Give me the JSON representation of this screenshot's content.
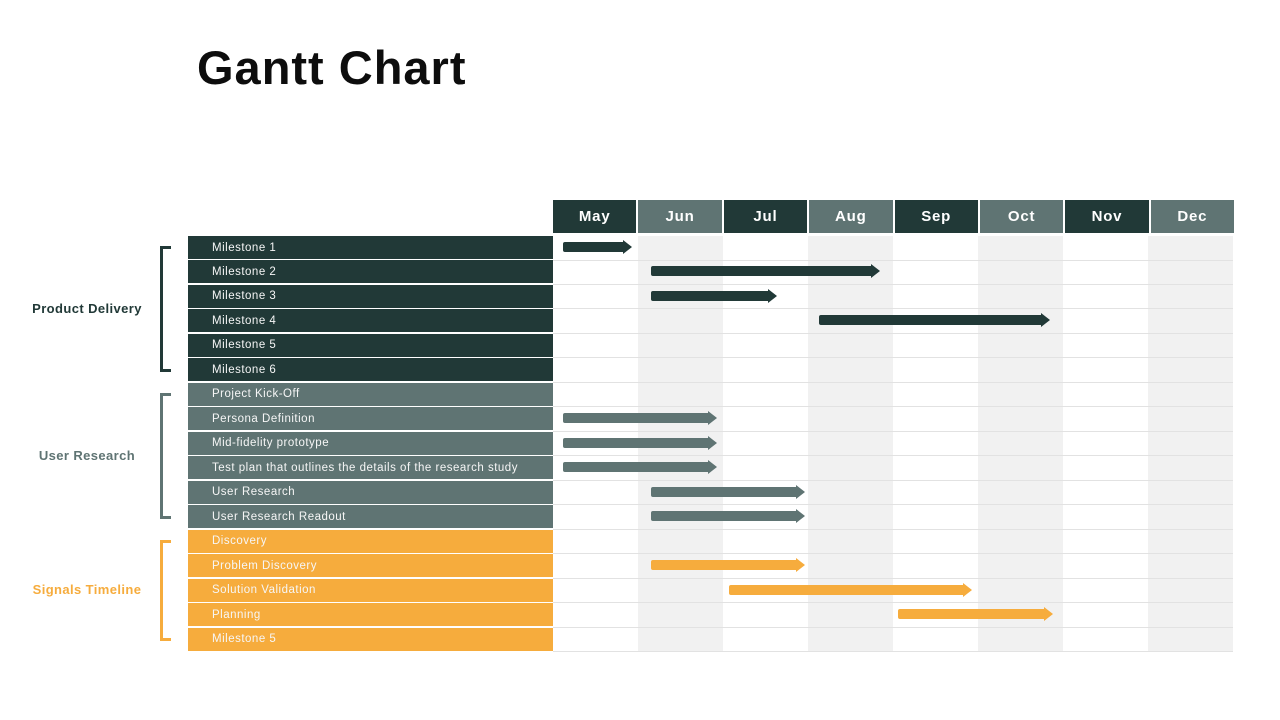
{
  "chart_data": {
    "type": "bar",
    "subtype": "gantt",
    "title": "Gantt Chart",
    "x_axis": {
      "unit": "month",
      "categories": [
        "May",
        "Jun",
        "Jul",
        "Aug",
        "Sep",
        "Oct",
        "Nov",
        "Dec"
      ],
      "range_months": 8,
      "striped_columns": [
        "Jun",
        "Aug",
        "Oct",
        "Dec"
      ]
    },
    "colors": {
      "dark": "#213937",
      "gray": "#5F7473",
      "orange": "#F6AC3D",
      "header_dark": "#213937",
      "header_light": "#5F7473",
      "stripe": "#f1f1f1",
      "grid_line": "#e2e2e2",
      "title_text": "#0d0d0d",
      "row_text": "#f6f6f6"
    },
    "groups": [
      {
        "id": "product-delivery",
        "label": "Product Delivery",
        "color_key": "dark",
        "tasks": [
          {
            "label": "Milestone 1",
            "bar": {
              "start_month": 0.12,
              "end_month": 0.93
            }
          },
          {
            "label": "Milestone 2",
            "bar": {
              "start_month": 1.15,
              "end_month": 3.85
            }
          },
          {
            "label": "Milestone 3",
            "bar": {
              "start_month": 1.15,
              "end_month": 2.63
            }
          },
          {
            "label": "Milestone 4",
            "bar": {
              "start_month": 3.13,
              "end_month": 5.85
            }
          },
          {
            "label": "Milestone 5",
            "bar": null
          },
          {
            "label": "Milestone 6",
            "bar": null
          }
        ]
      },
      {
        "id": "user-research",
        "label": "User Research",
        "color_key": "gray",
        "tasks": [
          {
            "label": "Project Kick-Off",
            "bar": null
          },
          {
            "label": "Persona Definition",
            "bar": {
              "start_month": 0.12,
              "end_month": 1.93
            }
          },
          {
            "label": "Mid-fidelity prototype",
            "bar": {
              "start_month": 0.12,
              "end_month": 1.93
            }
          },
          {
            "label": "Test plan that outlines the details of the research study",
            "bar": {
              "start_month": 0.12,
              "end_month": 1.93
            }
          },
          {
            "label": "User Research",
            "bar": {
              "start_month": 1.15,
              "end_month": 2.97
            }
          },
          {
            "label": "User Research Readout",
            "bar": {
              "start_month": 1.15,
              "end_month": 2.97
            }
          }
        ]
      },
      {
        "id": "signals-timeline",
        "label": "Signals Timeline",
        "color_key": "orange",
        "tasks": [
          {
            "label": "Discovery",
            "bar": null
          },
          {
            "label": "Problem Discovery",
            "bar": {
              "start_month": 1.15,
              "end_month": 2.97
            }
          },
          {
            "label": "Solution Validation",
            "bar": {
              "start_month": 2.07,
              "end_month": 4.93
            }
          },
          {
            "label": "Planning",
            "bar": {
              "start_month": 4.06,
              "end_month": 5.88
            }
          },
          {
            "label": "Milestone 5",
            "bar": null
          }
        ]
      }
    ]
  }
}
